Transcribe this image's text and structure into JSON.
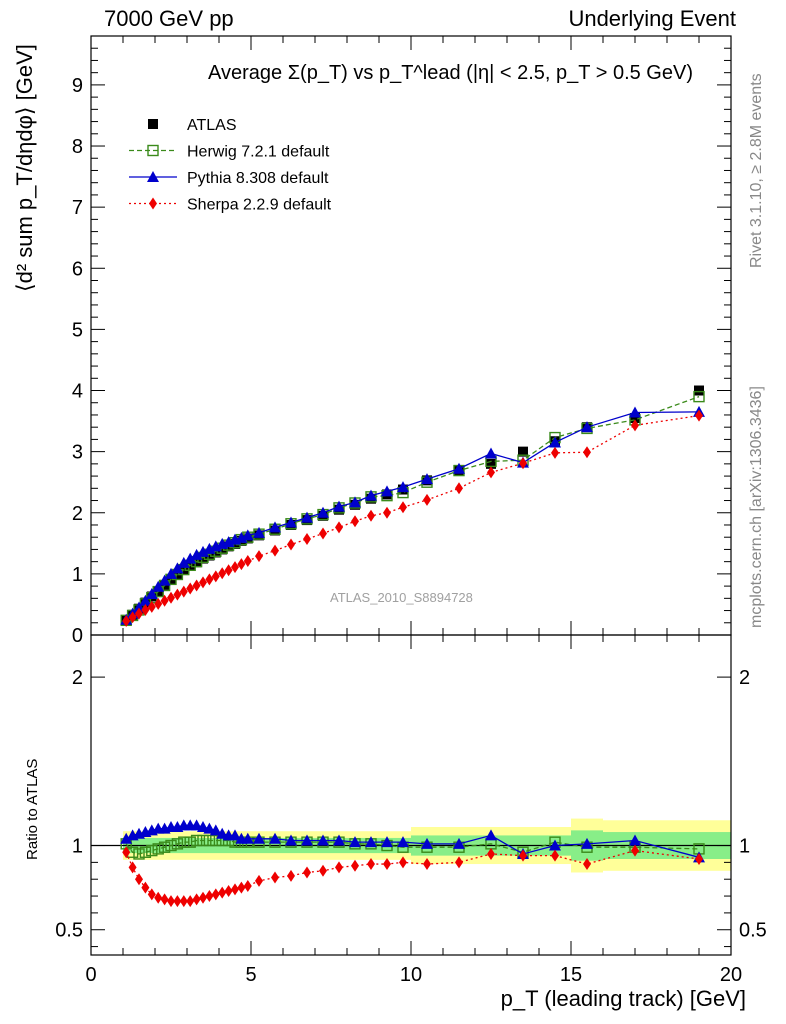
{
  "header": {
    "left": "7000 GeV pp",
    "right": "Underlying Event"
  },
  "side_labels": {
    "rivet": "Rivet 3.1.10, ≥ 2.8M events",
    "mcplots": "mcplots.cern.ch [arXiv:1306.3436]"
  },
  "watermark": "ATLAS_2010_S8894728",
  "colors": {
    "ATLAS": "#000000",
    "Herwig": "#3a8a1a",
    "Pythia": "#0000cc",
    "Sherpa": "#ee0000",
    "band_inner": "#88ee88",
    "band_outer": "#ffff99"
  },
  "chart_data": [
    {
      "type": "scatter",
      "panel": "main",
      "title": "Average Σ(p_T) vs p_T^lead (|η| < 2.5, p_T > 0.5 GeV)",
      "xlabel": "p_T (leading track) [GeV]",
      "ylabel": "⟨d² sum p_T/dηdφ⟩ [GeV]",
      "xlim": [
        0,
        20
      ],
      "ylim": [
        0,
        9.8
      ],
      "xticks": [
        0,
        5,
        10,
        15,
        20
      ],
      "yticks": [
        0,
        1,
        2,
        3,
        4,
        5,
        6,
        7,
        8,
        9
      ],
      "legend_position": "top-left",
      "x": [
        1.1,
        1.3,
        1.5,
        1.7,
        1.9,
        2.1,
        2.3,
        2.5,
        2.7,
        2.9,
        3.1,
        3.3,
        3.5,
        3.7,
        3.9,
        4.1,
        4.3,
        4.5,
        4.7,
        4.9,
        5.25,
        5.75,
        6.25,
        6.75,
        7.25,
        7.75,
        8.25,
        8.75,
        9.25,
        9.75,
        10.5,
        11.5,
        12.5,
        13.5,
        14.5,
        15.5,
        17.0,
        19.0
      ],
      "series": [
        {
          "name": "ATLAS",
          "values": [
            0.24,
            0.33,
            0.43,
            0.53,
            0.63,
            0.72,
            0.82,
            0.91,
            0.99,
            1.07,
            1.13,
            1.19,
            1.25,
            1.3,
            1.35,
            1.4,
            1.45,
            1.49,
            1.54,
            1.58,
            1.63,
            1.71,
            1.8,
            1.88,
            1.95,
            2.05,
            2.13,
            2.23,
            2.3,
            2.38,
            2.53,
            2.7,
            2.8,
            3.0,
            3.17,
            3.4,
            3.55,
            4.0
          ]
        },
        {
          "name": "Herwig 7.2.1 default",
          "values": [
            0.24,
            0.32,
            0.41,
            0.51,
            0.61,
            0.71,
            0.81,
            0.91,
            0.99,
            1.07,
            1.14,
            1.2,
            1.27,
            1.32,
            1.37,
            1.42,
            1.47,
            1.51,
            1.56,
            1.6,
            1.65,
            1.73,
            1.82,
            1.9,
            1.97,
            2.08,
            2.16,
            2.26,
            2.28,
            2.33,
            2.5,
            2.69,
            2.84,
            2.86,
            3.23,
            3.38,
            3.52,
            3.9
          ]
        },
        {
          "name": "Pythia 8.308 default",
          "values": [
            0.25,
            0.35,
            0.45,
            0.56,
            0.67,
            0.79,
            0.89,
            1.0,
            1.09,
            1.18,
            1.25,
            1.31,
            1.36,
            1.41,
            1.45,
            1.49,
            1.52,
            1.56,
            1.59,
            1.63,
            1.67,
            1.76,
            1.84,
            1.92,
            2.0,
            2.1,
            2.17,
            2.28,
            2.35,
            2.42,
            2.55,
            2.72,
            2.97,
            2.82,
            3.15,
            3.4,
            3.64,
            3.65
          ]
        },
        {
          "name": "Sherpa 2.2.9 default",
          "values": [
            0.23,
            0.29,
            0.35,
            0.41,
            0.46,
            0.51,
            0.56,
            0.61,
            0.66,
            0.71,
            0.76,
            0.81,
            0.86,
            0.91,
            0.96,
            1.01,
            1.06,
            1.11,
            1.16,
            1.21,
            1.29,
            1.38,
            1.48,
            1.57,
            1.66,
            1.76,
            1.86,
            1.95,
            2.0,
            2.09,
            2.21,
            2.4,
            2.66,
            2.81,
            2.98,
            2.99,
            3.43,
            3.59
          ]
        }
      ]
    },
    {
      "type": "scatter",
      "panel": "ratio",
      "ylabel": "Ratio to ATLAS",
      "xlabel": "p_T (leading track) [GeV]",
      "xlim": [
        0,
        20
      ],
      "ylim": [
        0.35,
        2.25
      ],
      "yticks": [
        0.5,
        1,
        2
      ],
      "ytick_labels": [
        "0.5",
        "1",
        "2"
      ],
      "xticks": [
        0,
        5,
        10,
        15,
        20
      ],
      "xtick_labels": [
        "0",
        "5",
        "10",
        "15",
        "20"
      ],
      "reference": 1,
      "bands": [
        {
          "from": 1.0,
          "to": 10.0,
          "inner": 0.045,
          "outer": 0.085
        },
        {
          "from": 10.0,
          "to": 15.0,
          "inner": 0.06,
          "outer": 0.11
        },
        {
          "from": 15.0,
          "to": 16.0,
          "inner": 0.09,
          "outer": 0.16
        },
        {
          "from": 16.0,
          "to": 20.0,
          "inner": 0.08,
          "outer": 0.15
        }
      ],
      "x": [
        1.1,
        1.3,
        1.5,
        1.7,
        1.9,
        2.1,
        2.3,
        2.5,
        2.7,
        2.9,
        3.1,
        3.3,
        3.5,
        3.7,
        3.9,
        4.1,
        4.3,
        4.5,
        4.7,
        4.9,
        5.25,
        5.75,
        6.25,
        6.75,
        7.25,
        7.75,
        8.25,
        8.75,
        9.25,
        9.75,
        10.5,
        11.5,
        12.5,
        13.5,
        14.5,
        15.5,
        17.0,
        19.0
      ],
      "series": [
        {
          "name": "Herwig 7.2.1 default",
          "values": [
            1.01,
            0.96,
            0.95,
            0.96,
            0.97,
            0.98,
            0.99,
            1.0,
            1.01,
            1.02,
            1.02,
            1.03,
            1.03,
            1.03,
            1.03,
            1.03,
            1.03,
            1.02,
            1.02,
            1.02,
            1.02,
            1.02,
            1.02,
            1.02,
            1.02,
            1.02,
            1.01,
            1.01,
            1.0,
            0.99,
            0.99,
            0.99,
            1.01,
            0.96,
            1.02,
            0.99,
            0.99,
            0.98
          ]
        },
        {
          "name": "Pythia 8.308 default",
          "values": [
            1.04,
            1.06,
            1.07,
            1.08,
            1.09,
            1.1,
            1.1,
            1.11,
            1.11,
            1.12,
            1.12,
            1.12,
            1.11,
            1.1,
            1.09,
            1.07,
            1.06,
            1.06,
            1.04,
            1.04,
            1.04,
            1.04,
            1.03,
            1.03,
            1.03,
            1.03,
            1.02,
            1.02,
            1.02,
            1.02,
            1.01,
            1.01,
            1.06,
            0.95,
            1.0,
            1.01,
            1.03,
            0.93
          ]
        },
        {
          "name": "Sherpa 2.2.9 default",
          "values": [
            0.96,
            0.87,
            0.8,
            0.75,
            0.71,
            0.69,
            0.68,
            0.67,
            0.67,
            0.67,
            0.67,
            0.68,
            0.69,
            0.7,
            0.71,
            0.72,
            0.73,
            0.74,
            0.75,
            0.76,
            0.79,
            0.81,
            0.82,
            0.84,
            0.85,
            0.87,
            0.88,
            0.89,
            0.89,
            0.9,
            0.89,
            0.9,
            0.95,
            0.94,
            0.94,
            0.89,
            0.97,
            0.92
          ]
        }
      ]
    }
  ]
}
